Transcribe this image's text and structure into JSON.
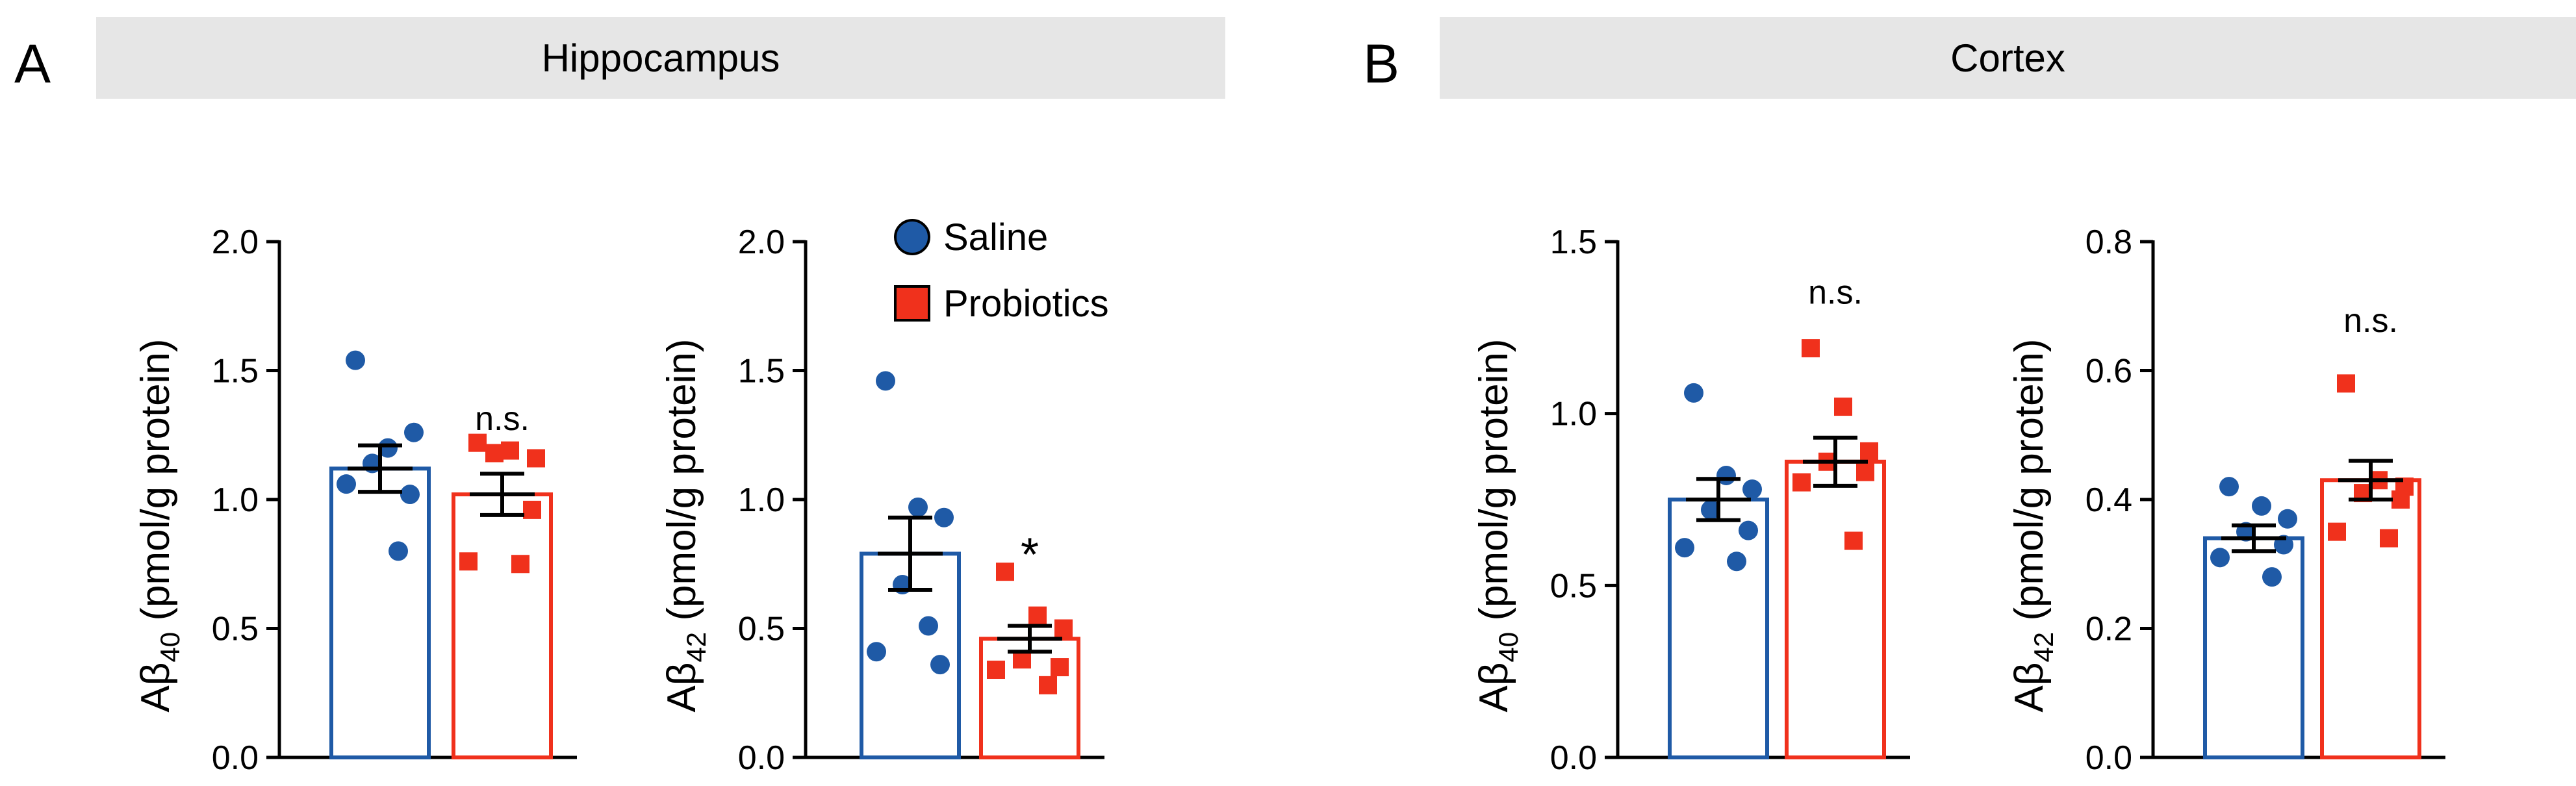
{
  "panels": [
    {
      "letter": "A",
      "title": "Hippocampus"
    },
    {
      "letter": "B",
      "title": "Cortex"
    }
  ],
  "legend": {
    "items": [
      {
        "name": "Saline",
        "marker": "circle",
        "color": "#1f5aa6"
      },
      {
        "name": "Probiotics",
        "marker": "square",
        "color": "#f0311c"
      }
    ]
  },
  "colors": {
    "saline": "#1f5aa6",
    "probiotics": "#f0311c",
    "axis": "#000000"
  },
  "chart_data": [
    {
      "type": "bar",
      "region": "Hippocampus",
      "ylabel_main": "Aβ",
      "ylabel_sub": "40",
      "ylabel_rest": " (pmol/g protein)",
      "ylim": [
        0,
        2.0
      ],
      "yticks": [
        "0.0",
        "0.5",
        "1.0",
        "1.5",
        "2.0"
      ],
      "ytick_values": [
        0,
        0.5,
        1.0,
        1.5,
        2.0
      ],
      "categories": [
        "Saline",
        "Probiotics"
      ],
      "series": [
        {
          "name": "Saline",
          "mean": 1.12,
          "sem": 0.09,
          "points": [
            1.54,
            1.2,
            1.26,
            1.14,
            1.02,
            1.06,
            0.8
          ]
        },
        {
          "name": "Probiotics",
          "mean": 1.02,
          "sem": 0.08,
          "points": [
            1.22,
            1.19,
            1.16,
            1.18,
            0.96,
            0.76,
            0.75
          ]
        }
      ],
      "annotation": {
        "text": "n.s.",
        "group": "Probiotics",
        "value": 1.27
      }
    },
    {
      "type": "bar",
      "region": "Hippocampus",
      "ylabel_main": "Aβ",
      "ylabel_sub": "42",
      "ylabel_rest": " (pmol/g protein)",
      "ylim": [
        0,
        2.0
      ],
      "yticks": [
        "0.0",
        "0.5",
        "1.0",
        "1.5",
        "2.0"
      ],
      "ytick_values": [
        0,
        0.5,
        1.0,
        1.5,
        2.0
      ],
      "categories": [
        "Saline",
        "Probiotics"
      ],
      "series": [
        {
          "name": "Saline",
          "mean": 0.79,
          "sem": 0.14,
          "points": [
            1.46,
            0.97,
            0.93,
            0.67,
            0.36,
            0.41,
            0.51
          ]
        },
        {
          "name": "Probiotics",
          "mean": 0.46,
          "sem": 0.05,
          "points": [
            0.72,
            0.55,
            0.5,
            0.38,
            0.35,
            0.34,
            0.28
          ]
        }
      ],
      "annotation": {
        "text": "*",
        "group": "Probiotics",
        "value": 0.8
      }
    },
    {
      "type": "bar",
      "region": "Cortex",
      "ylabel_main": "Aβ",
      "ylabel_sub": "40",
      "ylabel_rest": " (pmol/g protein)",
      "ylim": [
        0,
        1.5
      ],
      "yticks": [
        "0.0",
        "0.5",
        "1.0",
        "1.5"
      ],
      "ytick_values": [
        0,
        0.5,
        1.0,
        1.5
      ],
      "categories": [
        "Saline",
        "Probiotics"
      ],
      "series": [
        {
          "name": "Saline",
          "mean": 0.75,
          "sem": 0.06,
          "points": [
            1.06,
            0.82,
            0.78,
            0.72,
            0.66,
            0.61,
            0.57
          ]
        },
        {
          "name": "Probiotics",
          "mean": 0.86,
          "sem": 0.07,
          "points": [
            1.19,
            1.02,
            0.89,
            0.86,
            0.83,
            0.8,
            0.63
          ]
        }
      ],
      "annotation": {
        "text": "n.s.",
        "group": "Probiotics",
        "value": 1.32
      }
    },
    {
      "type": "bar",
      "region": "Cortex",
      "ylabel_main": "Aβ",
      "ylabel_sub": "42",
      "ylabel_rest": " (pmol/g protein)",
      "ylim": [
        0,
        0.8
      ],
      "yticks": [
        "0.0",
        "0.2",
        "0.4",
        "0.6",
        "0.8"
      ],
      "ytick_values": [
        0,
        0.2,
        0.4,
        0.6,
        0.8
      ],
      "categories": [
        "Saline",
        "Probiotics"
      ],
      "series": [
        {
          "name": "Saline",
          "mean": 0.34,
          "sem": 0.02,
          "points": [
            0.42,
            0.39,
            0.37,
            0.35,
            0.33,
            0.31,
            0.28
          ]
        },
        {
          "name": "Probiotics",
          "mean": 0.43,
          "sem": 0.03,
          "points": [
            0.58,
            0.43,
            0.42,
            0.41,
            0.4,
            0.35,
            0.34
          ]
        }
      ],
      "annotation": {
        "text": "n.s.",
        "group": "Probiotics",
        "value": 0.66
      }
    }
  ]
}
